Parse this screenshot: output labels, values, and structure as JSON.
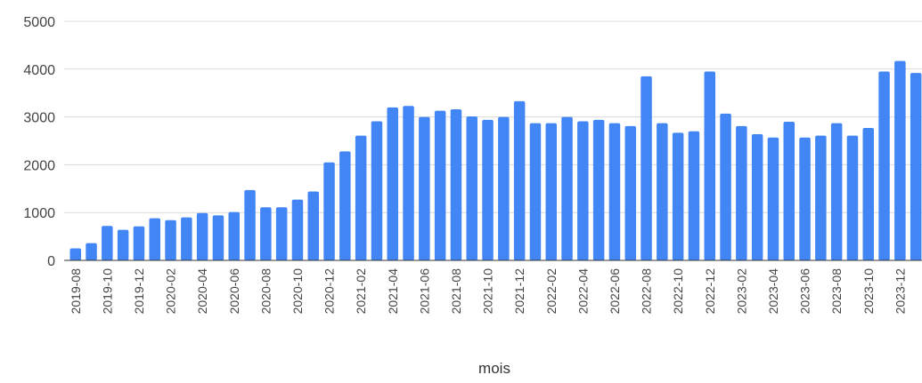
{
  "chart_data": {
    "type": "bar",
    "title": "",
    "xlabel": "mois",
    "ylabel": "",
    "ylim": [
      0,
      5000
    ],
    "y_ticks": [
      "0",
      "1000",
      "2000",
      "3000",
      "4000",
      "5000"
    ],
    "grid": true,
    "legend": "none",
    "bar_color": "#4285f4",
    "categories": [
      "2019-08",
      "2019-09",
      "2019-10",
      "2019-11",
      "2019-12",
      "2020-01",
      "2020-02",
      "2020-03",
      "2020-04",
      "2020-05",
      "2020-06",
      "2020-07",
      "2020-08",
      "2020-09",
      "2020-10",
      "2020-11",
      "2020-12",
      "2021-01",
      "2021-02",
      "2021-03",
      "2021-04",
      "2021-05",
      "2021-06",
      "2021-07",
      "2021-08",
      "2021-09",
      "2021-10",
      "2021-11",
      "2021-12",
      "2022-01",
      "2022-02",
      "2022-03",
      "2022-04",
      "2022-05",
      "2022-06",
      "2022-07",
      "2022-08",
      "2022-09",
      "2022-10",
      "2022-11",
      "2022-12",
      "2023-01",
      "2023-02",
      "2023-03",
      "2023-04",
      "2023-05",
      "2023-06",
      "2023-07",
      "2023-08",
      "2023-09",
      "2023-10",
      "2023-11",
      "2023-12",
      "2024-01"
    ],
    "values": [
      250,
      360,
      720,
      640,
      710,
      880,
      840,
      900,
      990,
      940,
      1010,
      1470,
      1110,
      1110,
      1270,
      1440,
      2050,
      2280,
      2610,
      2910,
      3200,
      3230,
      3000,
      3130,
      3160,
      3010,
      2940,
      3000,
      3330,
      2870,
      2870,
      3000,
      2910,
      2940,
      2870,
      2810,
      3850,
      2870,
      2670,
      2700,
      3950,
      3070,
      2810,
      2640,
      2570,
      2900,
      2570,
      2610,
      2870,
      2610,
      2770,
      3950,
      4170,
      3920
    ],
    "x_tick_labels": [
      "2019-08",
      "2019-10",
      "2019-12",
      "2020-02",
      "2020-04",
      "2020-06",
      "2020-08",
      "2020-10",
      "2020-12",
      "2021-02",
      "2021-04",
      "2021-06",
      "2021-08",
      "2021-10",
      "2021-12",
      "2022-02",
      "2022-04",
      "2022-06",
      "2022-08",
      "2022-10",
      "2022-12",
      "2023-02",
      "2023-04",
      "2023-06",
      "2023-08",
      "2023-10",
      "2023-12"
    ]
  }
}
